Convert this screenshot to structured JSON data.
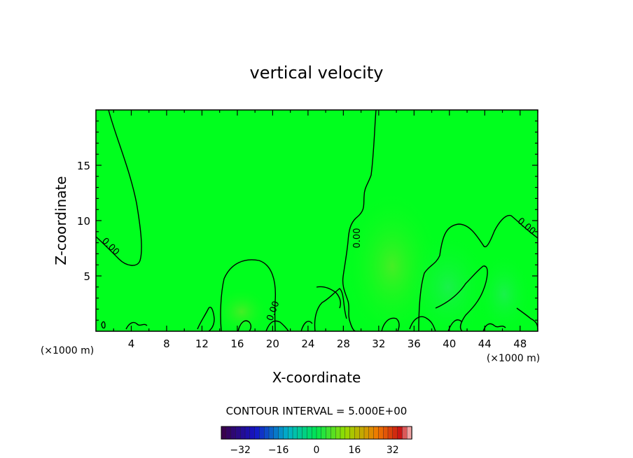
{
  "chart_data": {
    "type": "heatmap",
    "title": "vertical velocity",
    "xlabel": "X-coordinate",
    "ylabel": "Z-coordinate",
    "x_unit": "(×1000 m)",
    "z_unit": "(×1000 m)",
    "xlim": [
      0,
      50
    ],
    "ylim": [
      0,
      20
    ],
    "x_ticks": [
      4,
      8,
      12,
      16,
      20,
      24,
      28,
      32,
      36,
      40,
      44,
      48
    ],
    "y_ticks": [
      5,
      10,
      15
    ],
    "contour_interval_label": "CONTOUR INTERVAL = 5.000E+00",
    "contour_labels": [
      "0.00",
      "0.00",
      "0.00",
      "0.00"
    ],
    "colorbar": {
      "ticks": [
        "-32",
        "-16",
        "0",
        "16",
        "32"
      ],
      "range": [
        -40,
        40
      ]
    },
    "grid": false,
    "colors": {
      "background_field": "#00ff1e",
      "line": "#000000"
    }
  }
}
